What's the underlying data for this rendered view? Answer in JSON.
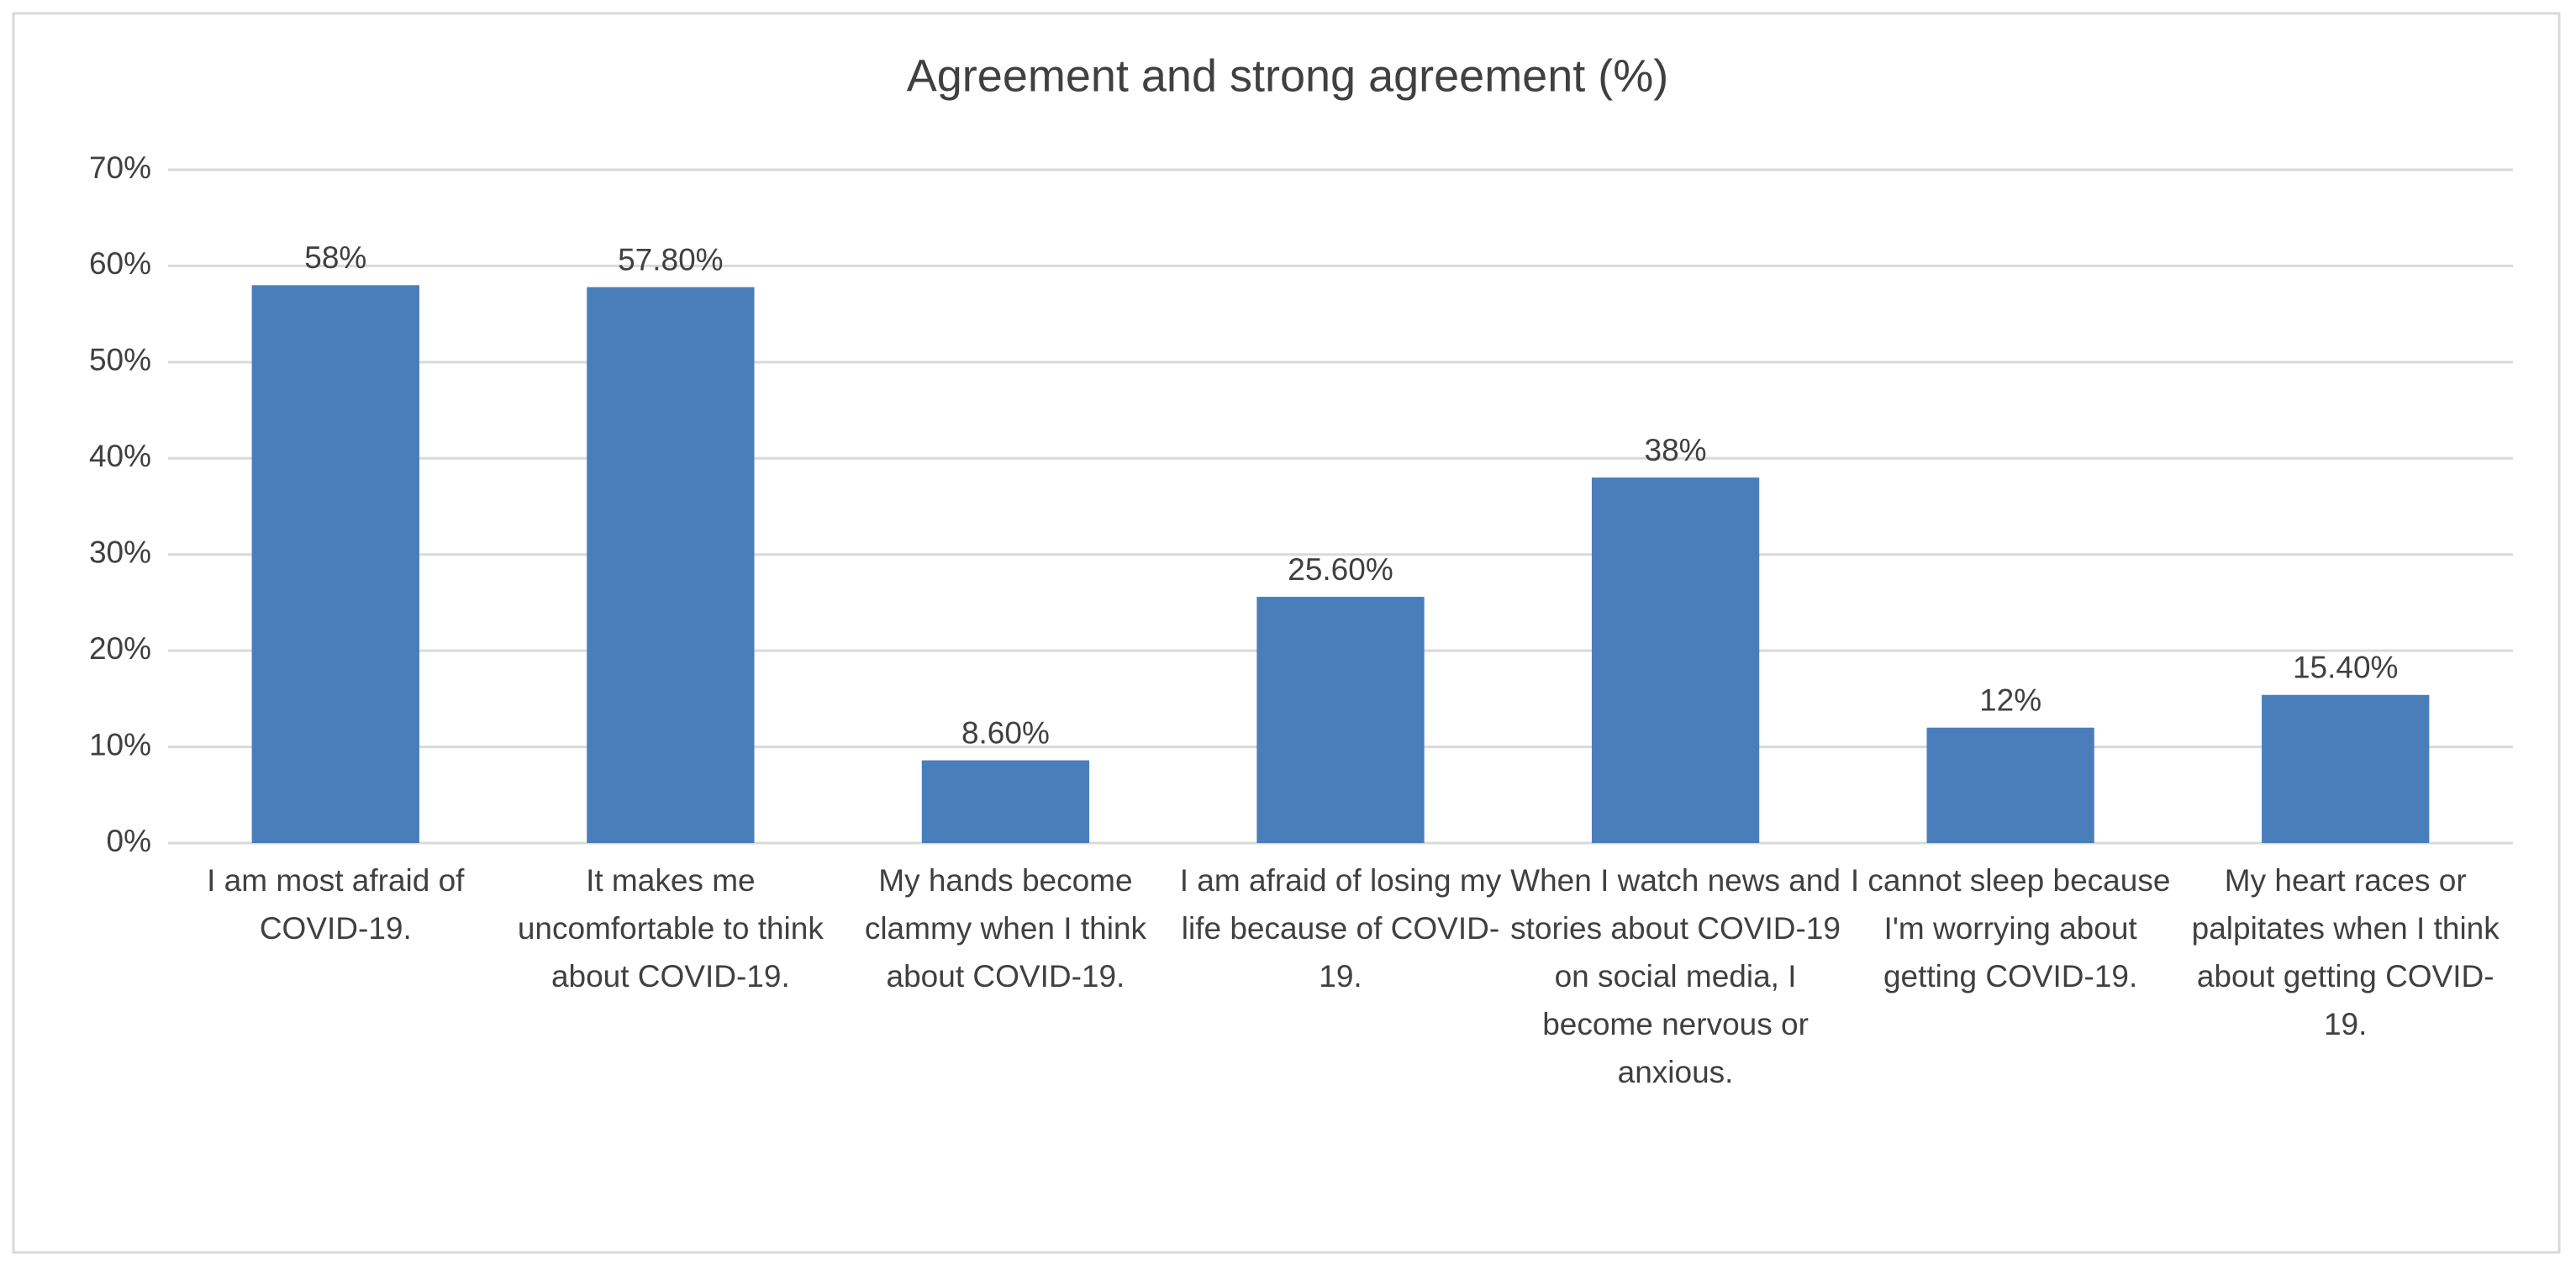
{
  "chart_data": {
    "type": "bar",
    "title": "Agreement and strong agreement (%)",
    "categories": [
      "I am most afraid of COVID-19.",
      "It makes me uncomfortable to think about COVID-19.",
      "My hands become clammy when I think about COVID-19.",
      "I am afraid of losing my life because of COVID-19.",
      "When I watch news and stories about COVID-19 on social media, I become nervous or anxious.",
      "I cannot sleep because I'm worrying about getting COVID-19.",
      "My heart races or palpitates when I think about getting COVID-19."
    ],
    "values": [
      58,
      57.8,
      8.6,
      25.6,
      38,
      12,
      15.4
    ],
    "value_labels": [
      "58%",
      "57.80%",
      "8.60%",
      "25.60%",
      "38%",
      "12%",
      "15.40%"
    ],
    "color": "#4a7ebb",
    "ylim": [
      0,
      70
    ],
    "yticks": [
      {
        "value": 0,
        "label": "0%"
      },
      {
        "value": 10,
        "label": "10%"
      },
      {
        "value": 20,
        "label": "20%"
      },
      {
        "value": 30,
        "label": "30%"
      },
      {
        "value": 40,
        "label": "40%"
      },
      {
        "value": 50,
        "label": "50%"
      },
      {
        "value": 60,
        "label": "60%"
      },
      {
        "value": 70,
        "label": "70%"
      }
    ],
    "grid": true
  }
}
